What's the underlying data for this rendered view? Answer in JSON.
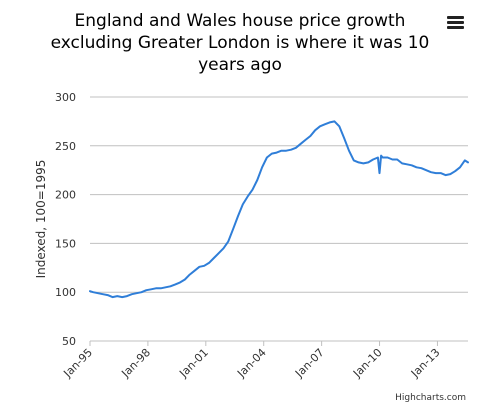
{
  "colors": {
    "series": "#2f7ed8",
    "grid": "#c0c0c0",
    "axis_text": "#333333",
    "title": "#000000",
    "credits": "#333333",
    "menu_icon": "#222222"
  },
  "menu": {
    "icon": "hamburger-menu-icon"
  },
  "credits": "Highcharts.com",
  "chart_data": {
    "type": "line",
    "title": "England and Wales house price growth excluding Greater London is where it was 10 years ago",
    "title_lines": [
      "England and Wales house price growth",
      "excluding Greater London is where it was 10",
      "years ago"
    ],
    "xlabel": "",
    "ylabel": "Indexed, 100=1995",
    "ylim": [
      50,
      300
    ],
    "yticks": [
      50,
      100,
      150,
      200,
      250,
      300
    ],
    "xlim": [
      "1995-01",
      "2014-08"
    ],
    "xticks": [
      "Jan-95",
      "Jan-98",
      "Jan-01",
      "Jan-04",
      "Jan-07",
      "Jan-10",
      "Jan-13"
    ],
    "grid": "horizontal",
    "legend": "none",
    "series": [
      {
        "x": [
          "1995-01",
          "1995-03",
          "1995-06",
          "1995-09",
          "1995-12",
          "1996-03",
          "1996-06",
          "1996-09",
          "1996-12",
          "1997-03",
          "1997-06",
          "1997-09",
          "1997-12",
          "1998-03",
          "1998-06",
          "1998-09",
          "1998-12",
          "1999-03",
          "1999-06",
          "1999-09",
          "1999-12",
          "2000-03",
          "2000-06",
          "2000-09",
          "2000-12",
          "2001-03",
          "2001-06",
          "2001-09",
          "2001-12",
          "2002-03",
          "2002-06",
          "2002-09",
          "2002-12",
          "2003-03",
          "2003-06",
          "2003-09",
          "2003-12",
          "2004-03",
          "2004-06",
          "2004-09",
          "2004-12",
          "2005-03",
          "2005-06",
          "2005-09",
          "2005-12",
          "2006-03",
          "2006-06",
          "2006-09",
          "2006-12",
          "2007-03",
          "2007-06",
          "2007-09",
          "2007-12",
          "2008-03",
          "2008-06",
          "2008-09",
          "2008-12",
          "2009-03",
          "2009-06",
          "2009-09",
          "2009-12",
          "2010-01",
          "2010-02",
          "2010-03",
          "2010-06",
          "2010-09",
          "2010-12",
          "2011-03",
          "2011-06",
          "2011-09",
          "2011-12",
          "2012-03",
          "2012-06",
          "2012-09",
          "2012-12",
          "2013-03",
          "2013-06",
          "2013-09",
          "2013-12",
          "2014-03",
          "2014-06",
          "2014-08"
        ],
        "values": [
          101,
          100,
          99,
          98,
          97,
          95,
          96,
          95,
          96,
          98,
          99,
          100,
          102,
          103,
          104,
          104,
          105,
          106,
          108,
          110,
          113,
          118,
          122,
          126,
          127,
          130,
          135,
          140,
          145,
          152,
          165,
          178,
          190,
          198,
          205,
          215,
          228,
          238,
          242,
          243,
          245,
          245,
          246,
          248,
          252,
          256,
          260,
          266,
          270,
          272,
          274,
          275,
          270,
          258,
          245,
          235,
          233,
          232,
          233,
          236,
          238,
          222,
          240,
          238,
          238,
          236,
          236,
          232,
          231,
          230,
          228,
          227,
          225,
          223,
          222,
          222,
          220,
          221,
          224,
          228,
          235,
          233
        ]
      }
    ]
  }
}
